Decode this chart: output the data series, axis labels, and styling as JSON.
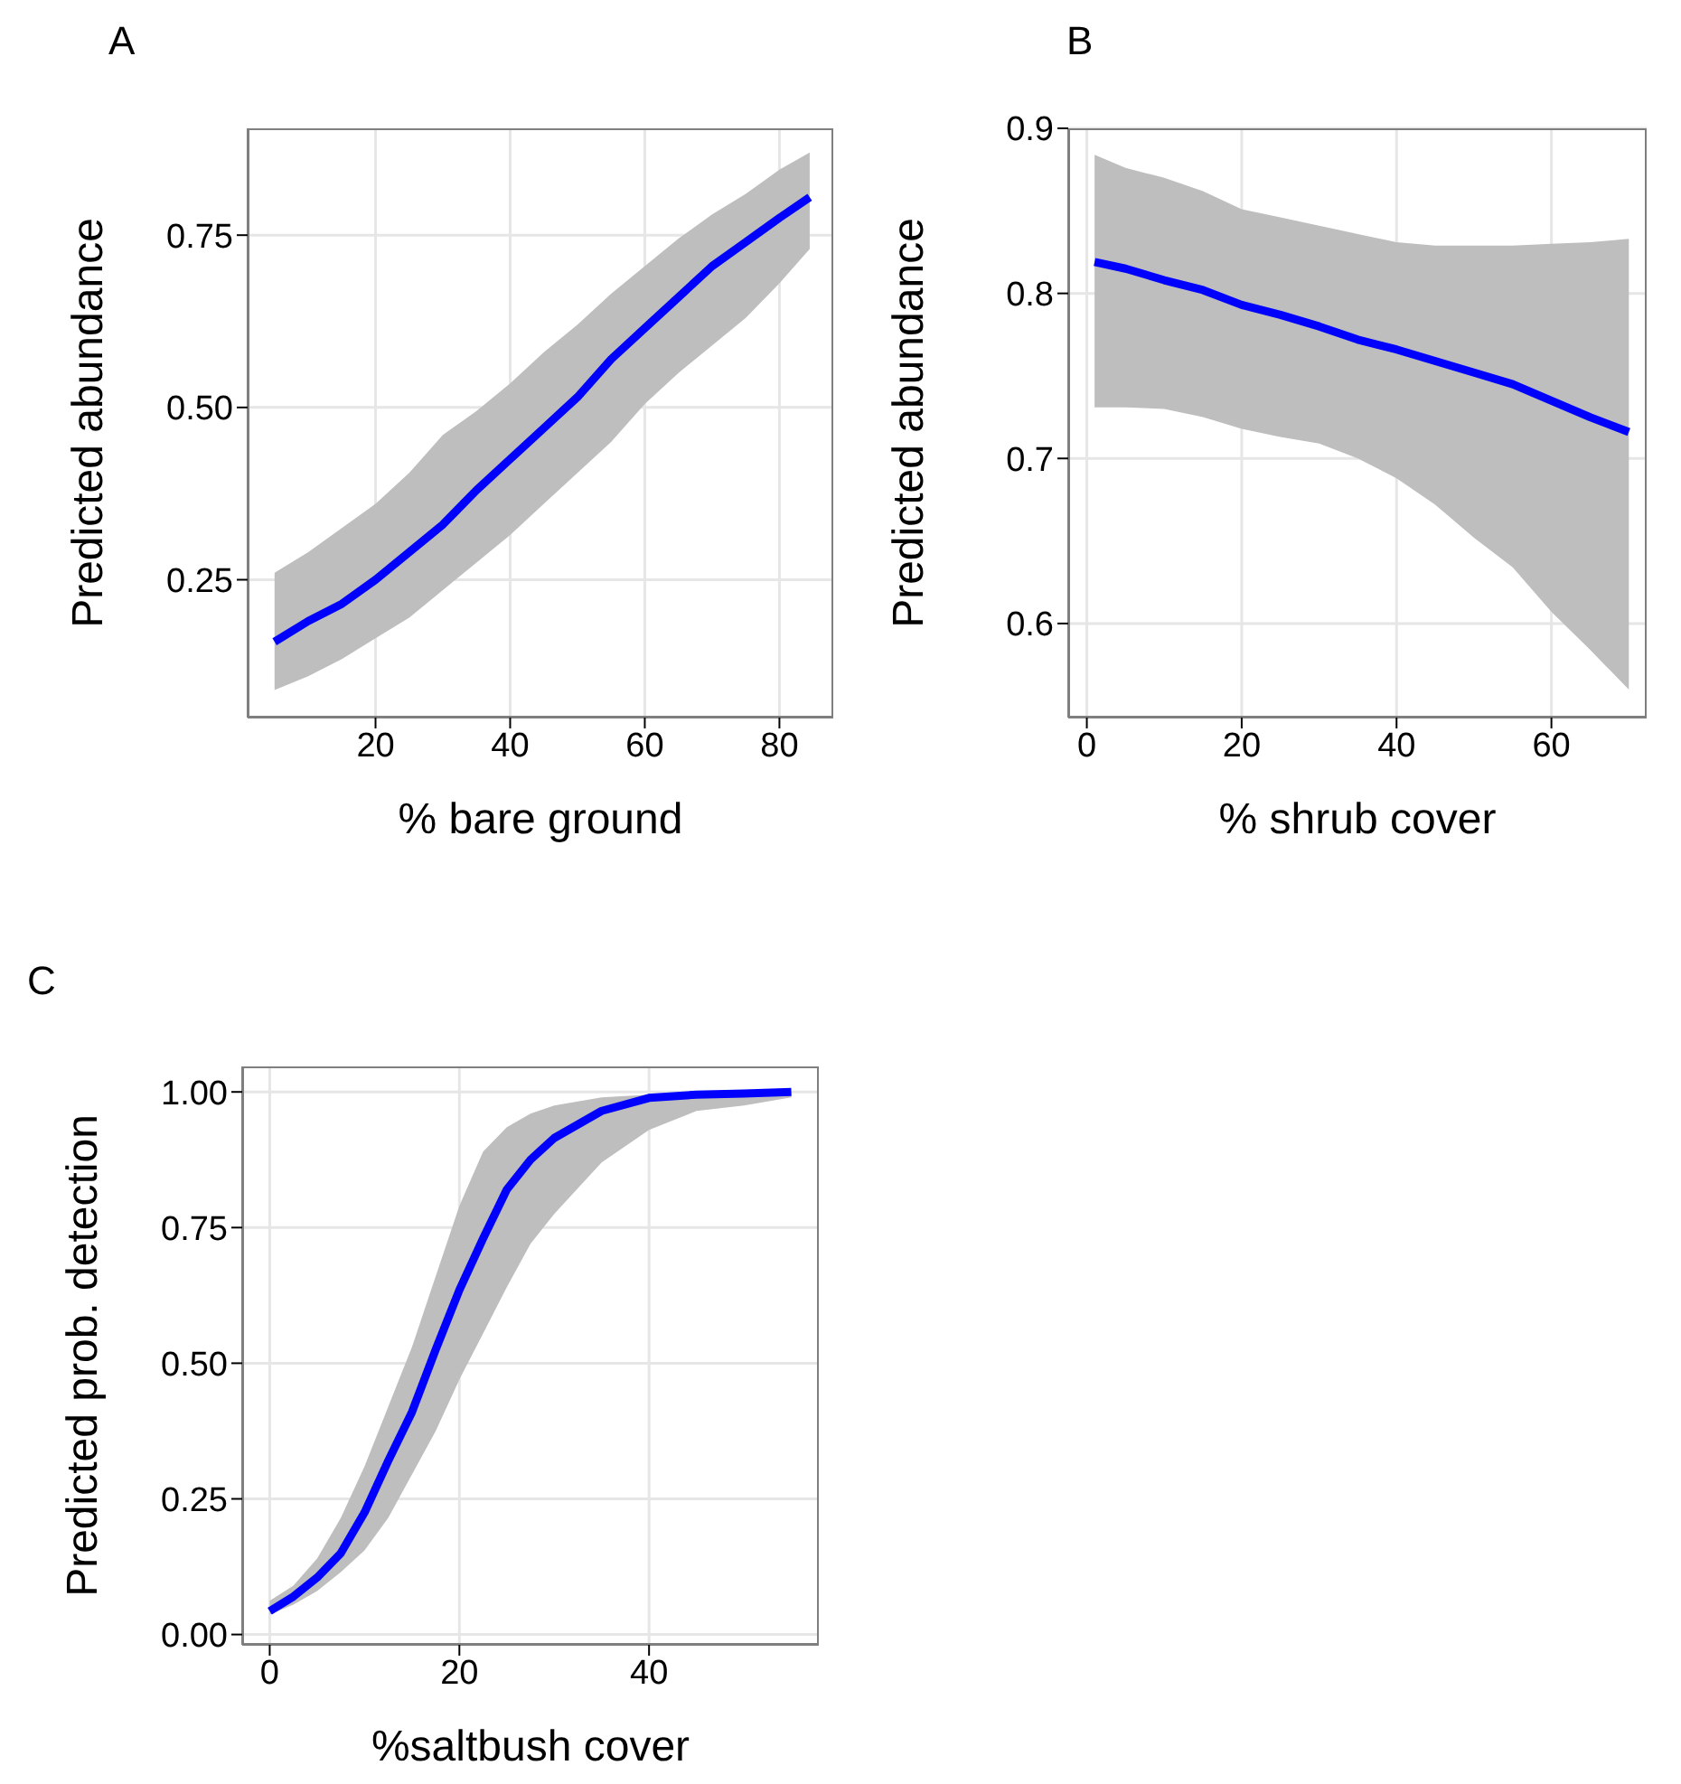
{
  "chart_data": [
    {
      "type": "line",
      "title": "A",
      "xlabel": "% bare ground",
      "ylabel": "Predicted abundance",
      "xlim": [
        1,
        88
      ],
      "ylim": [
        0.05,
        0.905
      ],
      "xticks": [
        20,
        40,
        60,
        80
      ],
      "yticks": [
        {
          "value": 0.25,
          "label": "0.25"
        },
        {
          "value": 0.5,
          "label": "0.50"
        },
        {
          "value": 0.75,
          "label": "0.75"
        }
      ],
      "grid": true,
      "series": [
        {
          "color": "#0000ff",
          "x": [
            5,
            10,
            15,
            20,
            25,
            30,
            35,
            40,
            45,
            50,
            55,
            60,
            65,
            70,
            75,
            80,
            84.5
          ],
          "values": [
            0.16,
            0.19,
            0.215,
            0.25,
            0.29,
            0.33,
            0.38,
            0.425,
            0.47,
            0.515,
            0.57,
            0.615,
            0.66,
            0.705,
            0.74,
            0.775,
            0.805
          ],
          "lower": [
            0.09,
            0.11,
            0.135,
            0.165,
            0.195,
            0.235,
            0.275,
            0.315,
            0.36,
            0.405,
            0.45,
            0.505,
            0.55,
            0.59,
            0.63,
            0.68,
            0.73
          ],
          "upper": [
            0.26,
            0.29,
            0.325,
            0.36,
            0.405,
            0.46,
            0.495,
            0.535,
            0.58,
            0.62,
            0.665,
            0.705,
            0.745,
            0.78,
            0.81,
            0.845,
            0.87
          ]
        }
      ]
    },
    {
      "type": "line",
      "title": "B",
      "xlabel": "% shrub cover",
      "ylabel": "Predicted abundance",
      "xlim": [
        -2.4,
        72.3
      ],
      "ylim": [
        0.543,
        0.9
      ],
      "xticks": [
        0,
        20,
        40,
        60
      ],
      "yticks": [
        0.6,
        0.7,
        0.8,
        0.9
      ],
      "grid": true,
      "series": [
        {
          "color": "#0000ff",
          "x": [
            1,
            5,
            10,
            15,
            20,
            25,
            30,
            35,
            40,
            45,
            50,
            55,
            60,
            65,
            70
          ],
          "values": [
            0.819,
            0.815,
            0.808,
            0.802,
            0.793,
            0.787,
            0.78,
            0.772,
            0.766,
            0.759,
            0.752,
            0.745,
            0.735,
            0.725,
            0.716
          ],
          "lower": [
            0.731,
            0.731,
            0.73,
            0.725,
            0.718,
            0.713,
            0.709,
            0.7,
            0.688,
            0.672,
            0.652,
            0.634,
            0.607,
            0.584,
            0.56
          ],
          "upper": [
            0.884,
            0.876,
            0.87,
            0.862,
            0.851,
            0.846,
            0.841,
            0.836,
            0.831,
            0.829,
            0.829,
            0.829,
            0.83,
            0.831,
            0.833
          ]
        }
      ]
    },
    {
      "type": "line",
      "title": "C",
      "xlabel": "%saltbush cover",
      "ylabel": "Predicted prob. detection",
      "xlim": [
        -2.9,
        57.9
      ],
      "ylim": [
        -0.019,
        1.047
      ],
      "xticks": [
        0,
        20,
        40
      ],
      "yticks": [
        {
          "value": 0,
          "label": "0.00"
        },
        {
          "value": 0.25,
          "label": "0.25"
        },
        {
          "value": 0.5,
          "label": "0.50"
        },
        {
          "value": 0.75,
          "label": "0.75"
        },
        {
          "value": 1,
          "label": "1.00"
        }
      ],
      "grid": true,
      "series": [
        {
          "color": "#0000ff",
          "x": [
            0,
            2.5,
            5,
            7.5,
            10,
            12.5,
            15,
            17.5,
            20,
            22.5,
            25,
            27.5,
            30,
            35,
            40,
            45,
            50,
            55
          ],
          "values": [
            0.043,
            0.07,
            0.105,
            0.15,
            0.225,
            0.32,
            0.41,
            0.525,
            0.635,
            0.73,
            0.82,
            0.875,
            0.915,
            0.965,
            0.989,
            0.995,
            0.997,
            1.0
          ],
          "lower": [
            0.037,
            0.055,
            0.08,
            0.115,
            0.155,
            0.215,
            0.295,
            0.375,
            0.47,
            0.555,
            0.64,
            0.72,
            0.775,
            0.87,
            0.93,
            0.965,
            0.975,
            0.99
          ],
          "upper": [
            0.062,
            0.09,
            0.14,
            0.215,
            0.31,
            0.42,
            0.53,
            0.66,
            0.79,
            0.89,
            0.935,
            0.96,
            0.975,
            0.99,
            0.995,
            0.998,
            0.999,
            1.0
          ]
        }
      ]
    }
  ]
}
